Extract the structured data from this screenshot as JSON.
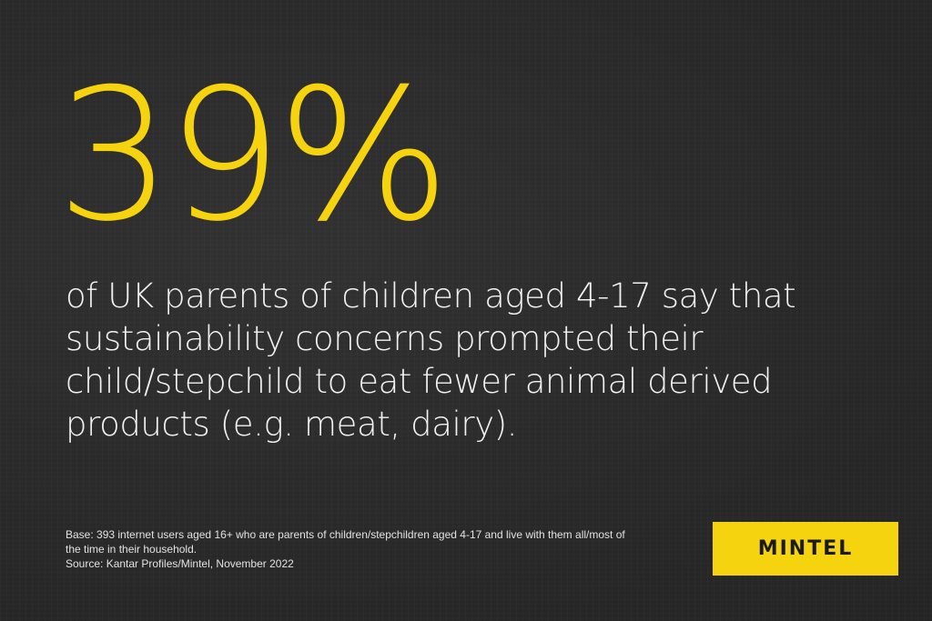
{
  "stat": {
    "value": "39%"
  },
  "headline": {
    "lines": [
      "of UK parents of children aged 4-17 say that",
      "sustainability concerns prompted their",
      "child/stepchild to eat fewer animal derived",
      "products (e.g. meat, dairy)."
    ]
  },
  "footnote": {
    "base_line1": "Base: 393 internet users aged 16+ who are parents of children/stepchildren aged 4-17 and live with them all/most of",
    "base_line2": "the time in their household.",
    "source": "Source: Kantar Profiles/Mintel, November 2022"
  },
  "brand": {
    "name": "MINTEL"
  },
  "colors": {
    "accent": "#f5d30f",
    "background": "#2b2b2b",
    "text": "#f2f2f2"
  }
}
